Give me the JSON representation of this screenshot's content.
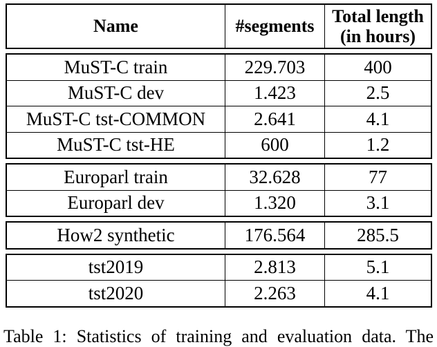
{
  "header": {
    "col_name": "Name",
    "col_segments": "#segments",
    "col_total_line1": "Total length",
    "col_total_line2": "(in hours)"
  },
  "groups": [
    {
      "rows": [
        {
          "name": "MuST-C train",
          "segments": "229.703",
          "hours": "400"
        },
        {
          "name": "MuST-C dev",
          "segments": "1.423",
          "hours": "2.5"
        },
        {
          "name": "MuST-C tst-COMMON",
          "segments": "2.641",
          "hours": "4.1"
        },
        {
          "name": "MuST-C tst-HE",
          "segments": "600",
          "hours": "1.2"
        }
      ]
    },
    {
      "rows": [
        {
          "name": "Europarl train",
          "segments": "32.628",
          "hours": "77"
        },
        {
          "name": "Europarl dev",
          "segments": "1.320",
          "hours": "3.1"
        }
      ]
    },
    {
      "rows": [
        {
          "name": "How2 synthetic",
          "segments": "176.564",
          "hours": "285.5"
        }
      ]
    },
    {
      "rows": [
        {
          "name": "tst2019",
          "segments": "2.813",
          "hours": "5.1"
        },
        {
          "name": "tst2020",
          "segments": "2.263",
          "hours": "4.1"
        }
      ]
    }
  ],
  "caption": "Table 1: Statistics of training and evaluation data. The"
}
